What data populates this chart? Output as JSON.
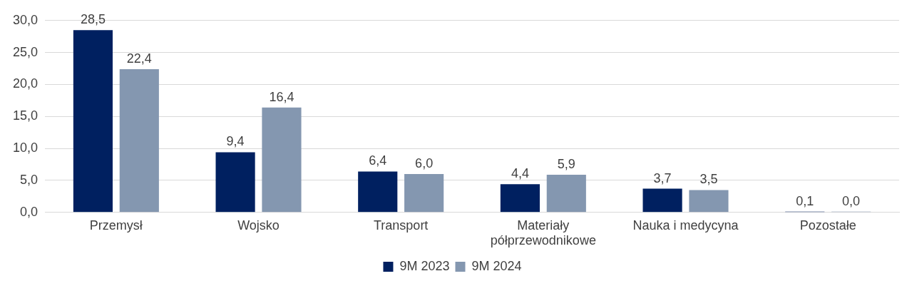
{
  "chart_data": {
    "type": "bar",
    "categories": [
      "Przemysł",
      "Wojsko",
      "Transport",
      "Materiały półprzewodnikowe",
      "Nauka i medycyna",
      "Pozostałe"
    ],
    "series": [
      {
        "name": "9M 2023",
        "color": "#002060",
        "values": [
          28.5,
          9.4,
          6.4,
          4.4,
          3.7,
          0.1
        ],
        "value_labels": [
          "28,5",
          "9,4",
          "6,4",
          "4,4",
          "3,7",
          "0,1"
        ]
      },
      {
        "name": "9M 2024",
        "color": "#8497b0",
        "values": [
          22.4,
          16.4,
          6.0,
          5.9,
          3.5,
          0.0
        ],
        "value_labels": [
          "22,4",
          "16,4",
          "6,0",
          "5,9",
          "3,5",
          "0,0"
        ]
      }
    ],
    "ylim": [
      0,
      30
    ],
    "yticks": [
      {
        "value": 0,
        "label": "0,0"
      },
      {
        "value": 5,
        "label": "5,0"
      },
      {
        "value": 10,
        "label": "10,0"
      },
      {
        "value": 15,
        "label": "15,0"
      },
      {
        "value": 20,
        "label": "20,0"
      },
      {
        "value": 25,
        "label": "25,0"
      },
      {
        "value": 30,
        "label": "30,0"
      }
    ],
    "grid": "y",
    "legend": "bottom"
  }
}
